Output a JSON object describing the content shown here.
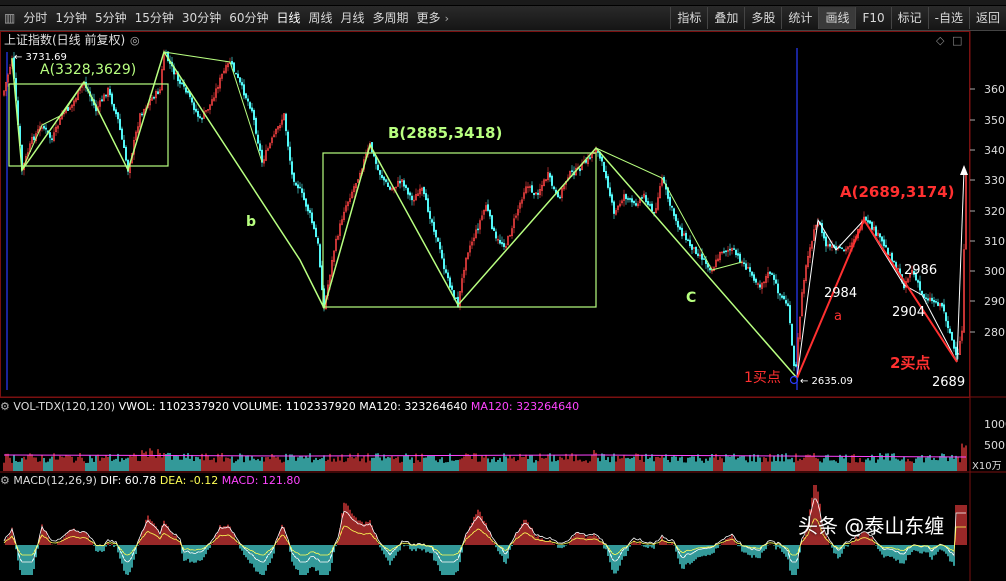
{
  "toolbar": {
    "left": [
      {
        "id": "tick",
        "label": "分时"
      },
      {
        "id": "m1",
        "label": "1分钟"
      },
      {
        "id": "m5",
        "label": "5分钟"
      },
      {
        "id": "m15",
        "label": "15分钟"
      },
      {
        "id": "m30",
        "label": "30分钟"
      },
      {
        "id": "m60",
        "label": "60分钟"
      },
      {
        "id": "day",
        "label": "日线"
      },
      {
        "id": "week",
        "label": "周线"
      },
      {
        "id": "month",
        "label": "月线"
      },
      {
        "id": "multi",
        "label": "多周期"
      },
      {
        "id": "more",
        "label": "更多"
      }
    ],
    "right": [
      {
        "id": "indicator",
        "label": "指标"
      },
      {
        "id": "overlay",
        "label": "叠加"
      },
      {
        "id": "multistock",
        "label": "多股"
      },
      {
        "id": "stats",
        "label": "统计"
      },
      {
        "id": "draw",
        "label": "画线"
      },
      {
        "id": "f10",
        "label": "F10"
      },
      {
        "id": "mark",
        "label": "标记"
      },
      {
        "id": "watch",
        "label": "-自选"
      },
      {
        "id": "back",
        "label": "返回"
      }
    ],
    "active": "day",
    "highlight": "draw",
    "colors": {
      "active": "#ffffff",
      "normal": "#d8d8d8"
    }
  },
  "main_panel": {
    "title": "上证指数(日线 前复权)",
    "price_axis": [
      "360",
      "350",
      "340",
      "330",
      "320",
      "310",
      "300",
      "290",
      "280"
    ],
    "high_label": "3731.69",
    "low_label": "2635.09",
    "annotations": {
      "A1": "A(3328,3629)",
      "B": "B(2885,3418)",
      "A2": "A(2689,3174)",
      "b": "b",
      "C": "C",
      "a": "a",
      "buy1": "1买点",
      "buy2": "2买点",
      "v2984": "2984",
      "v2986": "2986",
      "v2904": "2904",
      "v2689": "2689"
    },
    "colors": {
      "up": "#ff4444",
      "down": "#55ffff",
      "box": "#b8ff80",
      "red_line": "#ff3030",
      "red_text": "#ff3030"
    }
  },
  "volume_panel": {
    "label": "VOL-TDX(120,120)",
    "vwol": "VWOL: 1102337920",
    "volume": "VOLUME: 1102337920",
    "ma120_a": "MA120: 323264640",
    "ma120_b": "MA120: 323264640",
    "axis": [
      "1000",
      "500"
    ],
    "unit": "X10万"
  },
  "macd_panel": {
    "label": "MACD(12,26,9)",
    "dif": "DIF: 60.78",
    "dea": "DEA: -0.12",
    "macd": "MACD: 121.80"
  },
  "watermark": "头条 @泰山东缠"
}
